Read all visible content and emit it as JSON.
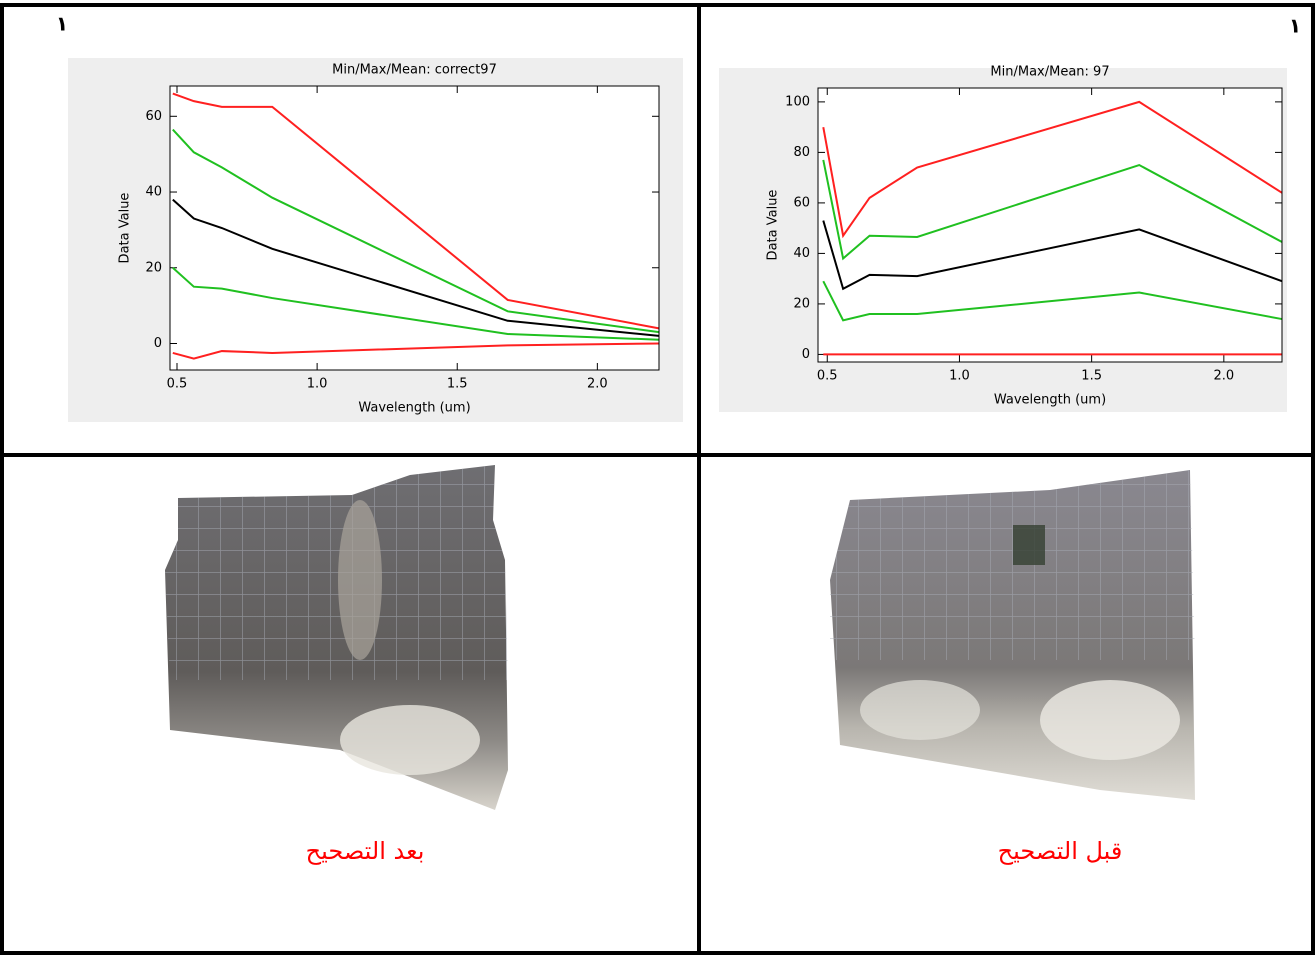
{
  "chart_data": [
    {
      "type": "line",
      "title": "Min/Max/Mean: correct97",
      "xlabel": "Wavelength (um)",
      "ylabel": "Data Value",
      "x": [
        0.485,
        0.56,
        0.66,
        0.84,
        1.68,
        2.22
      ],
      "xlim": [
        0.475,
        2.22
      ],
      "xticks": [
        0.5,
        {
          "value": 1,
          "label": "1.0"
        },
        1.5,
        {
          "value": 2,
          "label": "2.0"
        }
      ],
      "ylim": [
        -7,
        68
      ],
      "yticks": [
        0,
        20,
        40,
        60
      ],
      "series": [
        {
          "color": "#ff2020",
          "values": [
            66,
            64,
            62.5,
            62.5,
            11.5,
            4
          ]
        },
        {
          "color": "#20c020",
          "values": [
            56.5,
            50.5,
            46.5,
            38.5,
            8.5,
            3
          ]
        },
        {
          "color": "#000000",
          "values": [
            38,
            33,
            30.5,
            25,
            6,
            2
          ]
        },
        {
          "color": "#20c020",
          "values": [
            20,
            15,
            14.5,
            12,
            2.5,
            1
          ]
        },
        {
          "color": "#ff2020",
          "values": [
            -2.5,
            -4,
            -2,
            -2.5,
            -0.5,
            0
          ]
        }
      ]
    },
    {
      "type": "line",
      "title": "Min/Max/Mean: 97",
      "xlabel": "Wavelength (um)",
      "ylabel": "Data Value",
      "x": [
        0.485,
        0.56,
        0.66,
        0.84,
        1.68,
        2.22
      ],
      "xlim": [
        0.465,
        2.22
      ],
      "xticks": [
        0.5,
        {
          "value": 1,
          "label": "1.0"
        },
        1.5,
        {
          "value": 2,
          "label": "2.0"
        }
      ],
      "ylim": [
        -3,
        105.5
      ],
      "yticks": [
        0,
        20,
        40,
        60,
        80,
        100
      ],
      "series": [
        {
          "color": "#ff2020",
          "values": [
            90,
            47,
            62,
            74,
            100,
            64
          ]
        },
        {
          "color": "#20c020",
          "values": [
            77,
            38,
            47,
            46.5,
            75,
            44.5
          ]
        },
        {
          "color": "#000000",
          "values": [
            53,
            26,
            31.5,
            31,
            49.5,
            29
          ]
        },
        {
          "color": "#20c020",
          "values": [
            29,
            13.5,
            16,
            16,
            24.5,
            14
          ]
        },
        {
          "color": "#ff2020",
          "values": [
            0,
            0,
            0,
            0,
            0,
            0
          ]
        }
      ]
    }
  ],
  "corner_labels": [
    "١",
    "١"
  ],
  "captions": [
    "بعد التصحيح",
    "قبل التصحيح"
  ]
}
